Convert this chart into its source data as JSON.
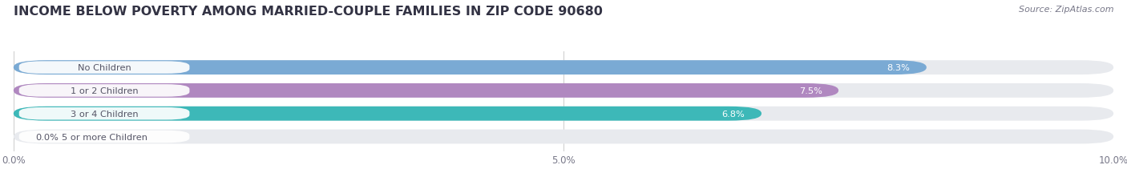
{
  "title": "INCOME BELOW POVERTY AMONG MARRIED-COUPLE FAMILIES IN ZIP CODE 90680",
  "source": "Source: ZipAtlas.com",
  "categories": [
    "No Children",
    "1 or 2 Children",
    "3 or 4 Children",
    "5 or more Children"
  ],
  "values": [
    8.3,
    7.5,
    6.8,
    0.0
  ],
  "bar_colors": [
    "#7aaad4",
    "#b088c0",
    "#3db8b8",
    "#aab8e0"
  ],
  "xlim": [
    0,
    10.0
  ],
  "xticks": [
    0.0,
    5.0,
    10.0
  ],
  "xticklabels": [
    "0.0%",
    "5.0%",
    "10.0%"
  ],
  "background_color": "#ffffff",
  "bar_background_color": "#e8eaee",
  "label_bg_color": "#ffffff",
  "title_fontsize": 11.5,
  "bar_height": 0.62,
  "label_text_color": "#555566"
}
